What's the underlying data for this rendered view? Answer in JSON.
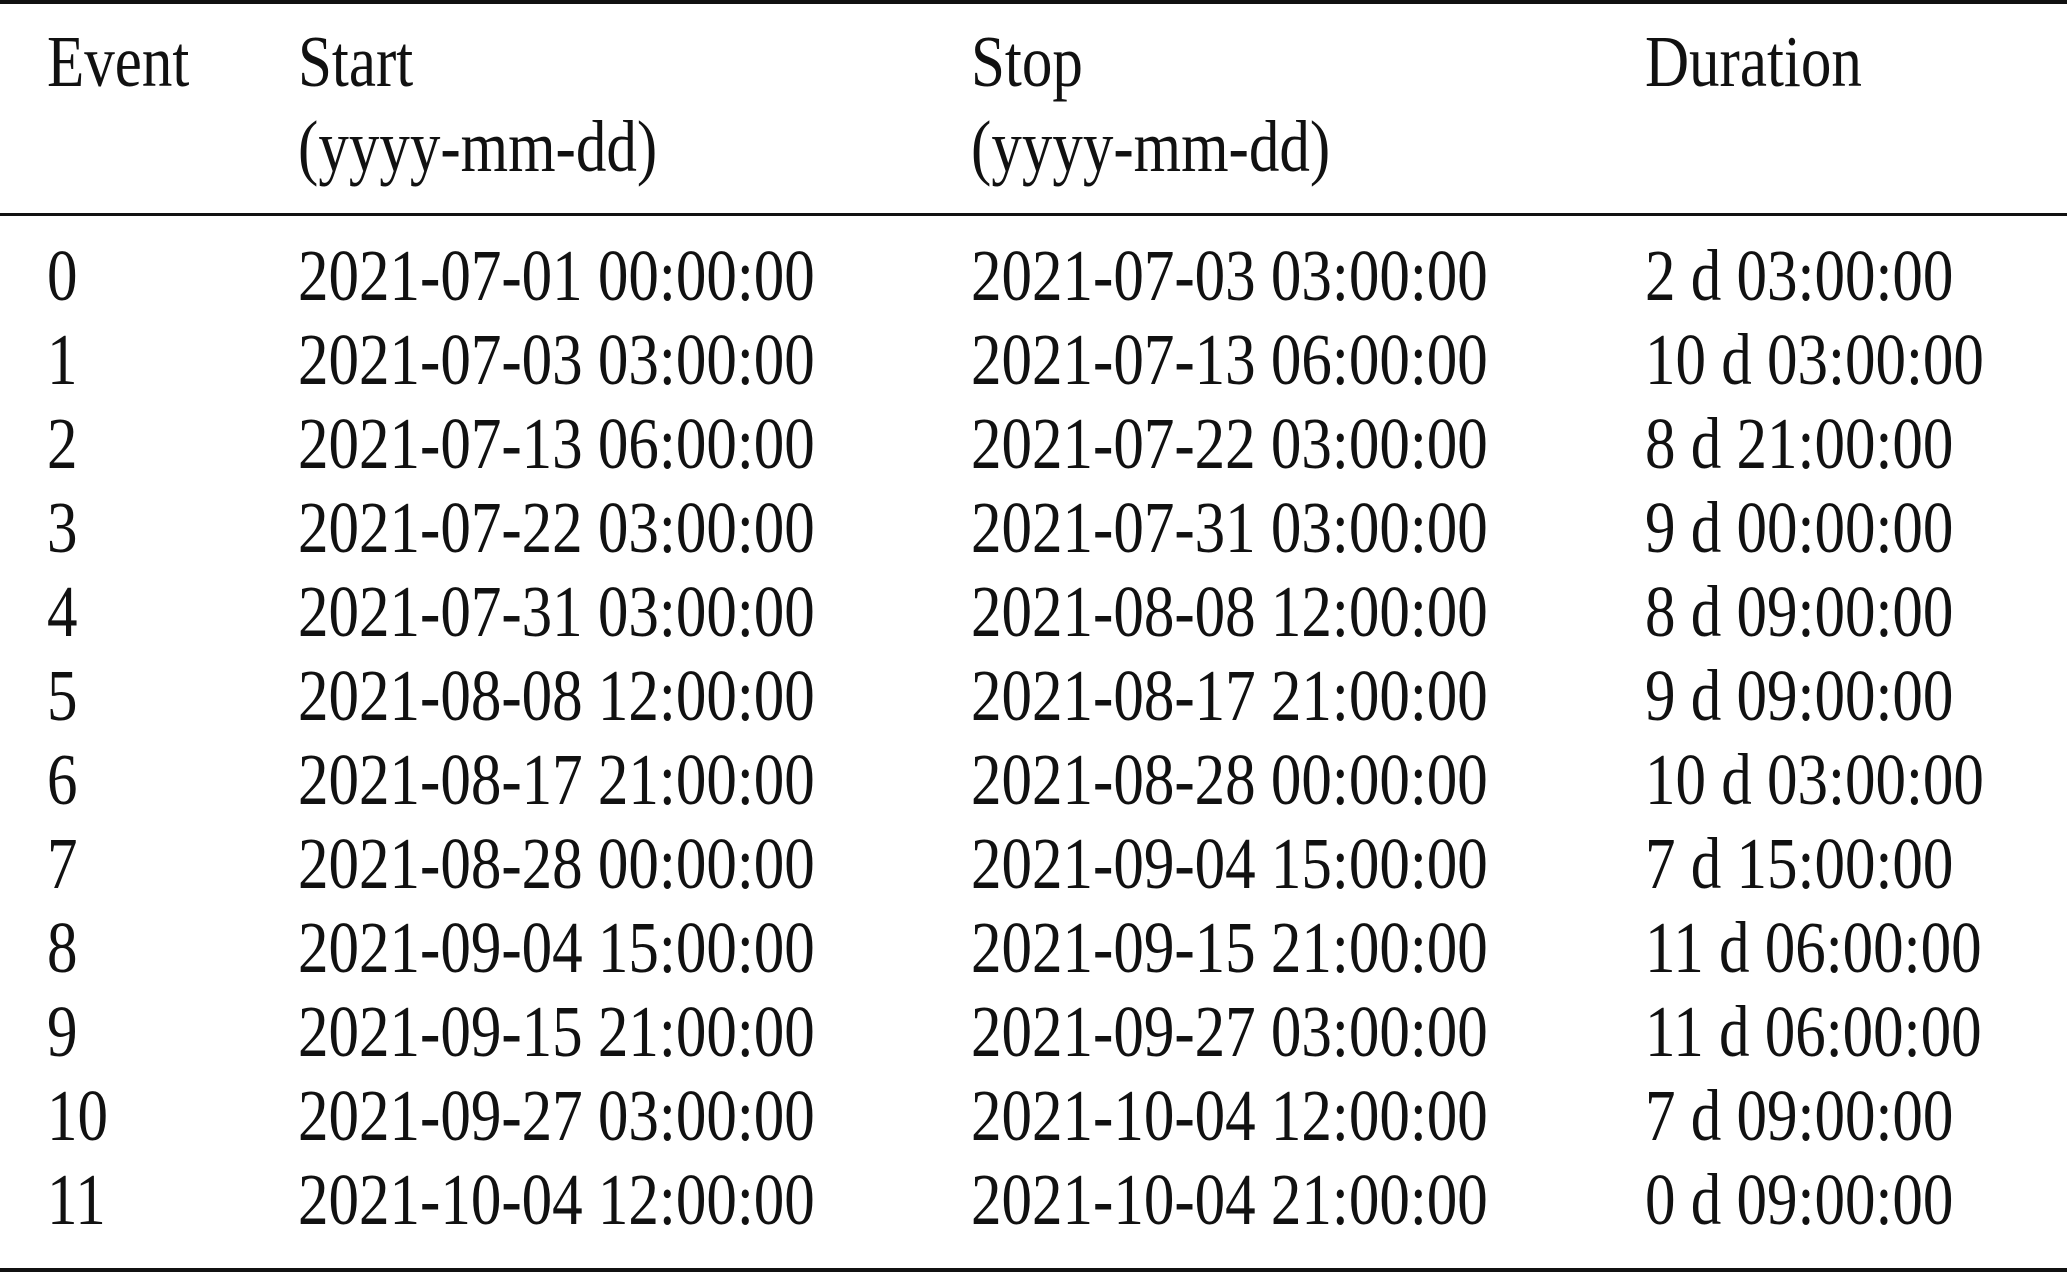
{
  "table": {
    "headers": [
      {
        "line1": "Event",
        "line2": ""
      },
      {
        "line1": "Start",
        "line2": "(yyyy-mm-dd)"
      },
      {
        "line1": "Stop",
        "line2": "(yyyy-mm-dd)"
      },
      {
        "line1": "Duration",
        "line2": ""
      }
    ],
    "rows": [
      [
        "0",
        "2021-07-01 00:00:00",
        "2021-07-03 03:00:00",
        "2 d 03:00:00"
      ],
      [
        "1",
        "2021-07-03 03:00:00",
        "2021-07-13 06:00:00",
        "10 d 03:00:00"
      ],
      [
        "2",
        "2021-07-13 06:00:00",
        "2021-07-22 03:00:00",
        "8 d 21:00:00"
      ],
      [
        "3",
        "2021-07-22 03:00:00",
        "2021-07-31 03:00:00",
        "9 d 00:00:00"
      ],
      [
        "4",
        "2021-07-31 03:00:00",
        "2021-08-08 12:00:00",
        "8 d 09:00:00"
      ],
      [
        "5",
        "2021-08-08 12:00:00",
        "2021-08-17 21:00:00",
        "9 d 09:00:00"
      ],
      [
        "6",
        "2021-08-17 21:00:00",
        "2021-08-28 00:00:00",
        "10 d 03:00:00"
      ],
      [
        "7",
        "2021-08-28 00:00:00",
        "2021-09-04 15:00:00",
        "7 d 15:00:00"
      ],
      [
        "8",
        "2021-09-04 15:00:00",
        "2021-09-15 21:00:00",
        "11 d 06:00:00"
      ],
      [
        "9",
        "2021-09-15 21:00:00",
        "2021-09-27 03:00:00",
        "11 d 06:00:00"
      ],
      [
        "10",
        "2021-09-27 03:00:00",
        "2021-10-04 12:00:00",
        "7 d 09:00:00"
      ],
      [
        "11",
        "2021-10-04 12:00:00",
        "2021-10-04 21:00:00",
        "0 d 09:00:00"
      ]
    ]
  }
}
